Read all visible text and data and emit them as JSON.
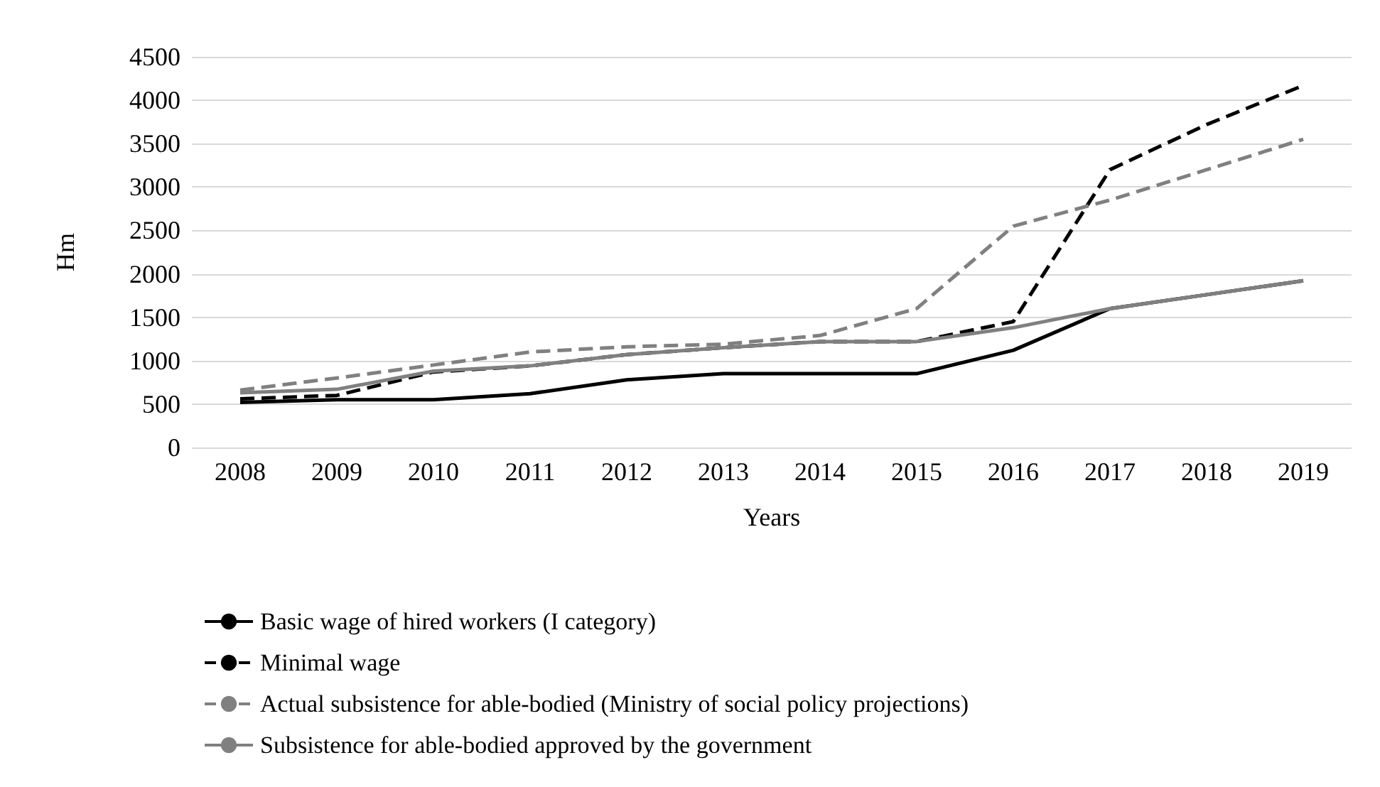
{
  "chart_data": {
    "type": "line",
    "xlabel": "Years",
    "ylabel": "Нm",
    "categories": [
      "2008",
      "2009",
      "2010",
      "2011",
      "2012",
      "2013",
      "2014",
      "2015",
      "2016",
      "2017",
      "2018",
      "2019"
    ],
    "series": [
      {
        "name": "Basic wage of hired workers (I category)",
        "color": "#000000",
        "line_style": "solid",
        "values": [
          520,
          550,
          550,
          620,
          780,
          850,
          850,
          850,
          1120,
          1600,
          1760,
          1920
        ]
      },
      {
        "name": "Minimal wage",
        "color": "#000000",
        "line_style": "dashed",
        "values": [
          560,
          600,
          870,
          940,
          1070,
          1150,
          1220,
          1220,
          1450,
          3200,
          3720,
          4170
        ]
      },
      {
        "name": "Actual subsistence for able-bodied (Ministry of social policy projections)",
        "color": "#808080",
        "line_style": "dashed",
        "values": [
          660,
          800,
          950,
          1100,
          1160,
          1190,
          1290,
          1600,
          2550,
          2850,
          3200,
          3550
        ]
      },
      {
        "name": "Subsistence for able-bodied approved by the government",
        "color": "#808080",
        "line_style": "solid",
        "values": [
          630,
          670,
          880,
          940,
          1070,
          1150,
          1220,
          1220,
          1380,
          1600,
          1760,
          1920
        ]
      }
    ],
    "ylim": [
      0,
      4500
    ],
    "yticks": [
      0,
      500,
      1000,
      1500,
      2000,
      2500,
      3000,
      3500,
      4000,
      4500
    ],
    "grid": "y",
    "legend": "bottom",
    "marker": "none"
  }
}
